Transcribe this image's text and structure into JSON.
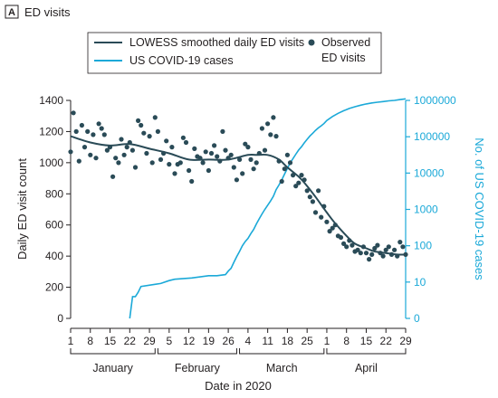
{
  "panel": {
    "letter": "A",
    "title": "ED visits"
  },
  "legend": {
    "lowess_label": "LOWESS smoothed daily ED visits",
    "covid_label": "US COVID-19 cases",
    "observed_label_line1": "Observed",
    "observed_label_line2": "ED visits"
  },
  "colors": {
    "lowess": "#2a4b57",
    "covid": "#1ba9d8",
    "observed": "#2a4b57",
    "axis": "#231f20"
  },
  "chart_data": {
    "type": "line",
    "xlabel": "Date in 2020",
    "ylabel": "Daily ED visit count",
    "y2label": "No. of US COVID-19 cases",
    "x_range_day_of_year": [
      1,
      120
    ],
    "ylim": [
      0,
      1400
    ],
    "y_ticks": [
      0,
      200,
      400,
      600,
      800,
      1000,
      1200,
      1400
    ],
    "y2_scale": "log",
    "y2_tick_values": [
      0,
      10,
      100,
      1000,
      10000,
      100000,
      1000000
    ],
    "y2_tick_labels": [
      "0",
      "10",
      "100",
      "1000",
      "10000",
      "100000",
      "1000000"
    ],
    "x_ticks": [
      {
        "day": 1,
        "label": "1"
      },
      {
        "day": 8,
        "label": "8"
      },
      {
        "day": 15,
        "label": "15"
      },
      {
        "day": 22,
        "label": "22"
      },
      {
        "day": 29,
        "label": "29"
      },
      {
        "day": 36,
        "label": "5"
      },
      {
        "day": 43,
        "label": "12"
      },
      {
        "day": 50,
        "label": "19"
      },
      {
        "day": 57,
        "label": "26"
      },
      {
        "day": 64,
        "label": "4"
      },
      {
        "day": 71,
        "label": "11"
      },
      {
        "day": 78,
        "label": "18"
      },
      {
        "day": 85,
        "label": "25"
      },
      {
        "day": 92,
        "label": "1"
      },
      {
        "day": 99,
        "label": "8"
      },
      {
        "day": 106,
        "label": "15"
      },
      {
        "day": 113,
        "label": "22"
      },
      {
        "day": 120,
        "label": "29"
      }
    ],
    "months": [
      {
        "name": "January",
        "start": 1,
        "end": 31
      },
      {
        "name": "February",
        "start": 32,
        "end": 60
      },
      {
        "name": "March",
        "start": 61,
        "end": 91
      },
      {
        "name": "April",
        "start": 92,
        "end": 120
      }
    ],
    "series": [
      {
        "name": "Observed ED visits",
        "kind": "scatter",
        "axis": "left",
        "x": [
          1,
          2,
          3,
          4,
          5,
          6,
          7,
          8,
          9,
          10,
          11,
          12,
          13,
          14,
          15,
          16,
          17,
          18,
          19,
          20,
          21,
          22,
          23,
          24,
          25,
          26,
          27,
          28,
          29,
          30,
          31,
          32,
          33,
          34,
          35,
          36,
          37,
          38,
          39,
          40,
          41,
          42,
          43,
          44,
          45,
          46,
          47,
          48,
          49,
          50,
          51,
          52,
          53,
          54,
          55,
          56,
          57,
          58,
          59,
          60,
          61,
          62,
          63,
          64,
          65,
          66,
          67,
          68,
          69,
          70,
          71,
          72,
          73,
          74,
          75,
          76,
          77,
          78,
          79,
          80,
          81,
          82,
          83,
          84,
          85,
          86,
          87,
          88,
          89,
          90,
          91,
          92,
          93,
          94,
          95,
          96,
          97,
          98,
          99,
          100,
          101,
          102,
          103,
          104,
          105,
          106,
          107,
          108,
          109,
          110,
          111,
          112,
          113,
          114,
          115,
          116,
          117,
          118,
          119,
          120
        ],
        "y": [
          1070,
          1320,
          1200,
          1010,
          1240,
          1100,
          1200,
          1050,
          1180,
          1030,
          1250,
          1220,
          1180,
          1080,
          1100,
          910,
          1030,
          1000,
          1150,
          1050,
          1100,
          1130,
          1080,
          970,
          1270,
          1240,
          1190,
          1060,
          1170,
          1000,
          1290,
          1200,
          1020,
          1060,
          1140,
          990,
          1100,
          930,
          990,
          1000,
          1160,
          1130,
          950,
          880,
          1090,
          1040,
          1030,
          1000,
          1070,
          950,
          1060,
          1110,
          1040,
          1010,
          1200,
          1080,
          1030,
          1050,
          970,
          890,
          1020,
          930,
          1120,
          1100,
          1020,
          960,
          1000,
          1060,
          1220,
          1080,
          1250,
          1180,
          1290,
          1170,
          1010,
          880,
          960,
          1050,
          1000,
          920,
          850,
          870,
          920,
          890,
          820,
          780,
          750,
          680,
          820,
          650,
          720,
          620,
          560,
          580,
          600,
          530,
          520,
          480,
          460,
          500,
          470,
          430,
          440,
          420,
          460,
          420,
          380,
          410,
          450,
          470,
          420,
          400,
          440,
          460,
          410,
          440,
          400,
          490,
          460,
          410
        ]
      },
      {
        "name": "LOWESS smoothed daily ED visits",
        "kind": "line",
        "axis": "left",
        "x": [
          1,
          8,
          15,
          22,
          29,
          36,
          43,
          50,
          57,
          64,
          67,
          71,
          75,
          78,
          82,
          85,
          88,
          92,
          95,
          99,
          102,
          106,
          109,
          113,
          117,
          120
        ],
        "y": [
          1170,
          1130,
          1110,
          1120,
          1090,
          1060,
          1020,
          1020,
          1020,
          1050,
          1050,
          1050,
          1020,
          970,
          910,
          850,
          780,
          680,
          610,
          530,
          480,
          450,
          430,
          420,
          410,
          410
        ]
      },
      {
        "name": "US COVID-19 cases",
        "kind": "line",
        "axis": "right",
        "x": [
          22,
          23,
          24,
          25,
          26,
          31,
          33,
          36,
          38,
          44,
          50,
          53,
          56,
          57,
          58,
          59,
          60,
          61,
          62,
          63,
          64,
          65,
          66,
          67,
          68,
          69,
          70,
          71,
          72,
          73,
          74,
          75,
          76,
          77,
          78,
          79,
          80,
          81,
          82,
          83,
          84,
          85,
          86,
          87,
          88,
          89,
          90,
          91,
          92,
          94,
          96,
          98,
          100,
          102,
          104,
          106,
          108,
          110,
          112,
          114,
          116,
          118,
          120
        ],
        "y": [
          0,
          1,
          1,
          2,
          5,
          7,
          8,
          11,
          12,
          13,
          15,
          15,
          16,
          20,
          24,
          35,
          50,
          70,
          100,
          130,
          160,
          215,
          280,
          400,
          550,
          750,
          1000,
          1300,
          1700,
          2300,
          3500,
          4700,
          6500,
          9400,
          13500,
          19000,
          25000,
          33000,
          43000,
          53000,
          68000,
          85000,
          105000,
          125000,
          150000,
          175000,
          200000,
          230000,
          280000,
          360000,
          440000,
          520000,
          600000,
          670000,
          740000,
          800000,
          850000,
          890000,
          930000,
          970000,
          1000000,
          1050000,
          1100000
        ]
      }
    ]
  }
}
